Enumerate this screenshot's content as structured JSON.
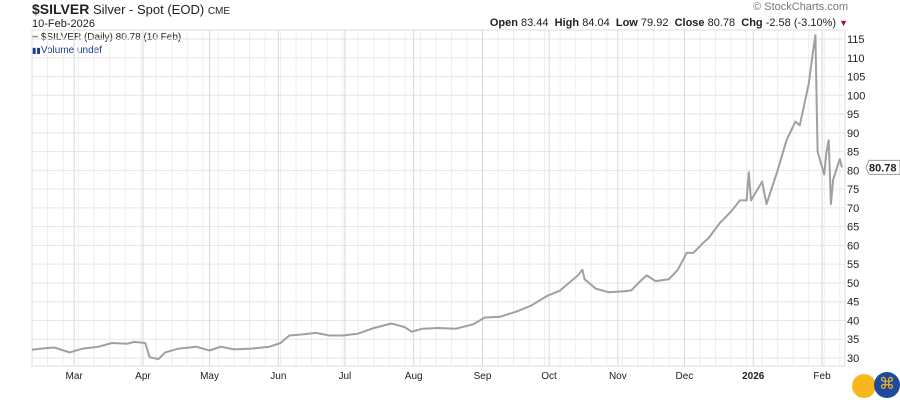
{
  "header": {
    "symbol": "$SILVER",
    "name": "Silver - Spot (EOD)",
    "exchange": "CME",
    "date": "10-Feb-2026",
    "brand": "© StockCharts.com",
    "open_label": "Open",
    "open": "83.44",
    "high_label": "High",
    "high": "84.04",
    "low_label": "Low",
    "low": "79.92",
    "close_label": "Close",
    "close": "80.78",
    "chg_label": "Chg",
    "chg": "-2.58 (-3.10%)",
    "chg_color": "#a0102a"
  },
  "legend": {
    "price": "$SILVER (Daily) 80.78 (10 Feb)",
    "volume": "Volume undef"
  },
  "chart_data": {
    "type": "line",
    "line_color": "#a0a0a0",
    "grid": true,
    "ylim": [
      28,
      117
    ],
    "yticks": [
      30,
      35,
      40,
      45,
      50,
      55,
      60,
      65,
      70,
      75,
      80,
      85,
      90,
      95,
      100,
      105,
      110,
      115
    ],
    "xticks": [
      {
        "label": "Mar",
        "date": "2025-03-01"
      },
      {
        "label": "Apr",
        "date": "2025-04-01"
      },
      {
        "label": "May",
        "date": "2025-05-01"
      },
      {
        "label": "Jun",
        "date": "2025-06-01"
      },
      {
        "label": "Jul",
        "date": "2025-07-01"
      },
      {
        "label": "Aug",
        "date": "2025-08-01"
      },
      {
        "label": "Sep",
        "date": "2025-09-01"
      },
      {
        "label": "Oct",
        "date": "2025-10-01"
      },
      {
        "label": "Nov",
        "date": "2025-11-01"
      },
      {
        "label": "Dec",
        "date": "2025-12-01"
      },
      {
        "label": "2026",
        "date": "2026-01-01",
        "bold": true
      },
      {
        "label": "Feb",
        "date": "2026-02-01"
      }
    ],
    "last_value": "80.78",
    "points": [
      [
        "2025-02-10",
        32.2
      ],
      [
        "2025-02-14",
        32.5
      ],
      [
        "2025-02-20",
        32.8
      ],
      [
        "2025-02-27",
        31.5
      ],
      [
        "2025-03-05",
        32.5
      ],
      [
        "2025-03-12",
        33
      ],
      [
        "2025-03-18",
        34
      ],
      [
        "2025-03-25",
        33.8
      ],
      [
        "2025-03-28",
        34.3
      ],
      [
        "2025-04-02",
        34
      ],
      [
        "2025-04-04",
        30.2
      ],
      [
        "2025-04-08",
        29.7
      ],
      [
        "2025-04-11",
        31.5
      ],
      [
        "2025-04-17",
        32.5
      ],
      [
        "2025-04-22",
        32.8
      ],
      [
        "2025-04-25",
        33
      ],
      [
        "2025-05-01",
        32
      ],
      [
        "2025-05-06",
        33
      ],
      [
        "2025-05-12",
        32.3
      ],
      [
        "2025-05-20",
        32.5
      ],
      [
        "2025-05-28",
        33
      ],
      [
        "2025-06-02",
        34
      ],
      [
        "2025-06-06",
        36
      ],
      [
        "2025-06-12",
        36.3
      ],
      [
        "2025-06-18",
        36.7
      ],
      [
        "2025-06-24",
        36
      ],
      [
        "2025-06-30",
        36
      ],
      [
        "2025-07-07",
        36.5
      ],
      [
        "2025-07-14",
        38
      ],
      [
        "2025-07-22",
        39.2
      ],
      [
        "2025-07-28",
        38.2
      ],
      [
        "2025-07-31",
        37
      ],
      [
        "2025-08-05",
        37.8
      ],
      [
        "2025-08-12",
        38
      ],
      [
        "2025-08-20",
        37.8
      ],
      [
        "2025-08-28",
        39
      ],
      [
        "2025-09-02",
        40.8
      ],
      [
        "2025-09-09",
        41
      ],
      [
        "2025-09-16",
        42.3
      ],
      [
        "2025-09-23",
        44
      ],
      [
        "2025-09-30",
        46.5
      ],
      [
        "2025-10-06",
        48
      ],
      [
        "2025-10-10",
        50
      ],
      [
        "2025-10-14",
        52
      ],
      [
        "2025-10-16",
        53.5
      ],
      [
        "2025-10-17",
        51
      ],
      [
        "2025-10-22",
        48.5
      ],
      [
        "2025-10-28",
        47.5
      ],
      [
        "2025-11-04",
        47.8
      ],
      [
        "2025-11-07",
        48
      ],
      [
        "2025-11-12",
        51
      ],
      [
        "2025-11-14",
        52
      ],
      [
        "2025-11-18",
        50.5
      ],
      [
        "2025-11-24",
        51
      ],
      [
        "2025-11-28",
        53.5
      ],
      [
        "2025-12-02",
        58
      ],
      [
        "2025-12-05",
        58
      ],
      [
        "2025-12-10",
        61
      ],
      [
        "2025-12-12",
        62
      ],
      [
        "2025-12-17",
        66
      ],
      [
        "2025-12-22",
        69
      ],
      [
        "2025-12-26",
        72
      ],
      [
        "2025-12-29",
        72
      ],
      [
        "2025-12-30",
        79.5
      ],
      [
        "2025-12-31",
        72
      ],
      [
        "2026-01-05",
        77
      ],
      [
        "2026-01-07",
        71
      ],
      [
        "2026-01-12",
        80
      ],
      [
        "2026-01-16",
        88
      ],
      [
        "2026-01-20",
        93
      ],
      [
        "2026-01-22",
        92
      ],
      [
        "2026-01-26",
        103
      ],
      [
        "2026-01-28",
        112
      ],
      [
        "2026-01-29",
        116
      ],
      [
        "2026-01-30",
        85
      ],
      [
        "2026-02-02",
        78.9
      ],
      [
        "2026-02-03",
        85
      ],
      [
        "2026-02-04",
        88
      ],
      [
        "2026-02-05",
        71
      ],
      [
        "2026-02-06",
        77.5
      ],
      [
        "2026-02-09",
        83
      ],
      [
        "2026-02-10",
        80.78
      ]
    ]
  }
}
